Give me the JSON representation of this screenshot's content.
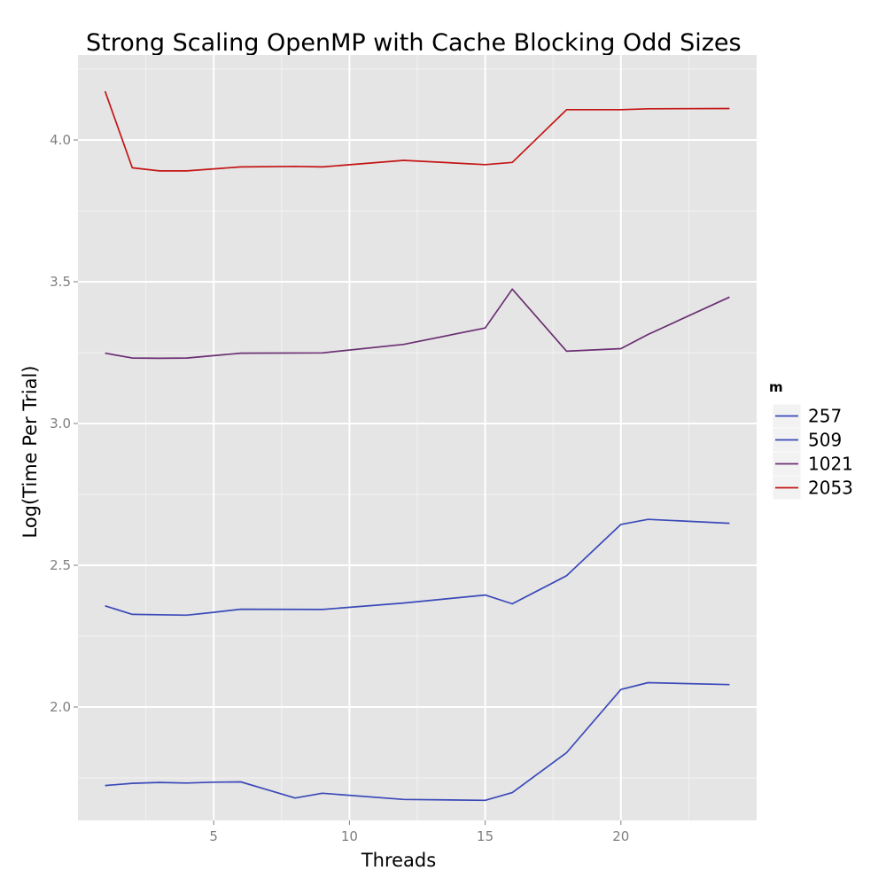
{
  "chart_data": {
    "type": "line",
    "title": "Strong Scaling OpenMP with Cache Blocking Odd Sizes",
    "xlabel": "Threads",
    "ylabel": "Log(Time Per Trial)",
    "xlim": [
      0.0,
      25.0
    ],
    "ylim": [
      1.6,
      4.3
    ],
    "x_ticks": [
      5,
      10,
      15,
      20
    ],
    "x_tick_labels": [
      "5",
      "10",
      "15",
      "20"
    ],
    "y_ticks": [
      2.0,
      2.5,
      3.0,
      3.5,
      4.0
    ],
    "y_tick_labels": [
      "2.0",
      "2.5",
      "3.0",
      "3.5",
      "4.0"
    ],
    "grid": true,
    "legend": {
      "title": "m",
      "position": "right"
    },
    "series": [
      {
        "name": "257",
        "color": "#3a49b8",
        "x": [
          1,
          2,
          3,
          4,
          5,
          6,
          8,
          9,
          12,
          15,
          16,
          18,
          20,
          21,
          24
        ],
        "y": [
          1.723,
          1.731,
          1.734,
          1.732,
          1.735,
          1.736,
          1.679,
          1.696,
          1.674,
          1.671,
          1.698,
          1.839,
          2.062,
          2.086,
          2.079
        ]
      },
      {
        "name": "509",
        "color": "#3a49b8",
        "x": [
          1,
          2,
          4,
          5,
          6,
          9,
          12,
          15,
          16,
          18,
          20,
          21,
          24
        ],
        "y": [
          2.357,
          2.327,
          2.324,
          2.334,
          2.345,
          2.344,
          2.367,
          2.395,
          2.364,
          2.463,
          2.644,
          2.662,
          2.648
        ]
      },
      {
        "name": "1021",
        "color": "#6b2f73",
        "x": [
          1,
          2,
          3,
          4,
          6,
          9,
          12,
          15,
          16,
          18,
          20,
          21,
          24
        ],
        "y": [
          3.248,
          3.231,
          3.23,
          3.231,
          3.248,
          3.249,
          3.279,
          3.337,
          3.474,
          3.255,
          3.264,
          3.314,
          3.446
        ]
      },
      {
        "name": "2053",
        "color": "#c41414",
        "x": [
          1,
          2,
          3,
          4,
          6,
          8,
          9,
          12,
          15,
          16,
          18,
          20,
          21,
          24
        ],
        "y": [
          4.172,
          3.902,
          3.891,
          3.891,
          3.905,
          3.907,
          3.905,
          3.928,
          3.913,
          3.921,
          4.107,
          4.107,
          4.11,
          4.111
        ]
      }
    ]
  }
}
